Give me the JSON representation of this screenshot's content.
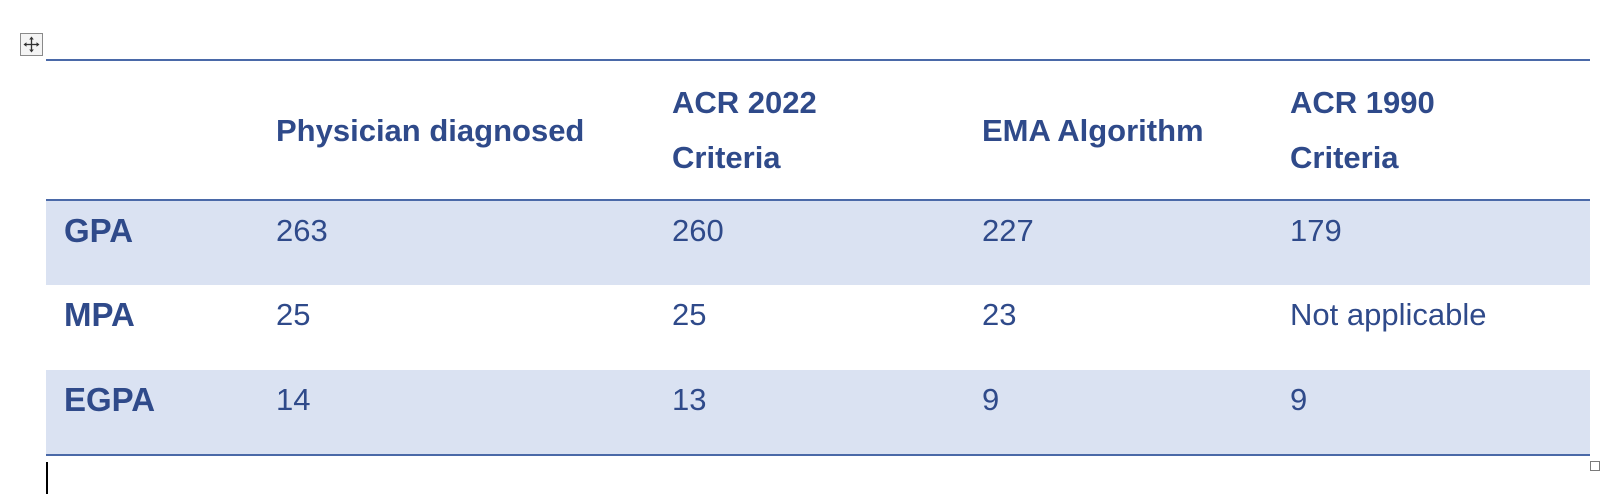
{
  "table": {
    "headers": [
      "",
      "Physician diagnosed",
      "ACR 2022 Criteria",
      "EMA Algorithm",
      "ACR 1990 Criteria"
    ],
    "rows": [
      {
        "label": "GPA",
        "values": [
          "263",
          "260",
          "227",
          "179"
        ]
      },
      {
        "label": "MPA",
        "values": [
          "25",
          "25",
          "23",
          "Not applicable"
        ]
      },
      {
        "label": "EGPA",
        "values": [
          "14",
          "13",
          "9",
          "9"
        ]
      }
    ]
  },
  "icons": {
    "move_handle": "move-arrows-icon",
    "resize_handle": "resize-square-icon"
  },
  "colors": {
    "text": "#2f4a8a",
    "shading": "#dae2f2",
    "rule": "#4a69a8"
  }
}
